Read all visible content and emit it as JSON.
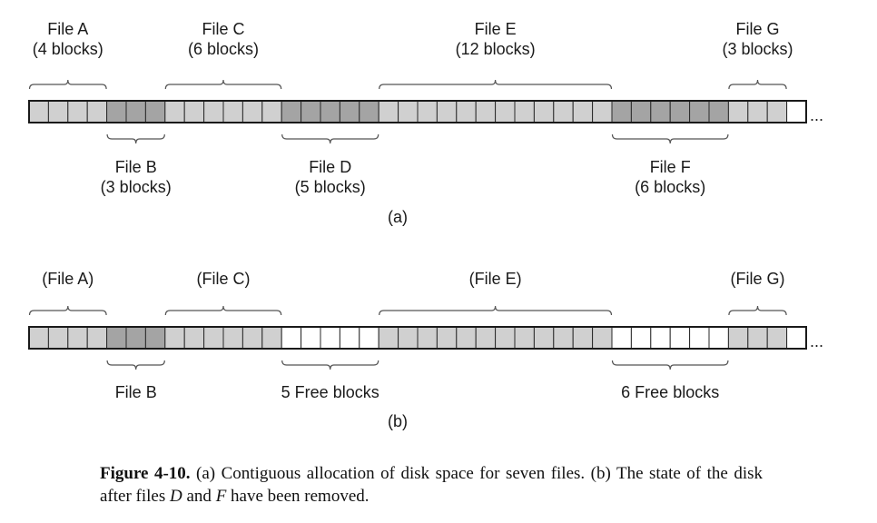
{
  "colors": {
    "light_block": "#d0d0d0",
    "dark_block": "#a4a4a4",
    "free_block": "#ffffff"
  },
  "total_blocks": 40,
  "panel_a": {
    "sublabel": "(a)",
    "ellipsis": "...",
    "segments": [
      {
        "file": "File A",
        "size_text": "(4 blocks)",
        "blocks": 4,
        "shade": "light",
        "label_side": "top"
      },
      {
        "file": "File B",
        "size_text": "(3 blocks)",
        "blocks": 3,
        "shade": "dark",
        "label_side": "bottom"
      },
      {
        "file": "File C",
        "size_text": "(6 blocks)",
        "blocks": 6,
        "shade": "light",
        "label_side": "top"
      },
      {
        "file": "File D",
        "size_text": "(5 blocks)",
        "blocks": 5,
        "shade": "dark",
        "label_side": "bottom"
      },
      {
        "file": "File E",
        "size_text": "(12 blocks)",
        "blocks": 12,
        "shade": "light",
        "label_side": "top"
      },
      {
        "file": "File F",
        "size_text": "(6 blocks)",
        "blocks": 6,
        "shade": "dark",
        "label_side": "bottom"
      },
      {
        "file": "File G",
        "size_text": "(3 blocks)",
        "blocks": 3,
        "shade": "light",
        "label_side": "top"
      },
      {
        "file": "",
        "size_text": "",
        "blocks": 1,
        "shade": "free",
        "label_side": "none"
      }
    ]
  },
  "panel_b": {
    "sublabel": "(b)",
    "ellipsis": "...",
    "segments": [
      {
        "file": "(File A)",
        "size_text": "",
        "blocks": 4,
        "shade": "light",
        "label_side": "top"
      },
      {
        "file": "File B",
        "size_text": "",
        "blocks": 3,
        "shade": "dark",
        "label_side": "bottom"
      },
      {
        "file": "(File C)",
        "size_text": "",
        "blocks": 6,
        "shade": "light",
        "label_side": "top"
      },
      {
        "file": "5 Free blocks",
        "size_text": "",
        "blocks": 5,
        "shade": "free",
        "label_side": "bottom"
      },
      {
        "file": "(File E)",
        "size_text": "",
        "blocks": 12,
        "shade": "light",
        "label_side": "top"
      },
      {
        "file": "6 Free blocks",
        "size_text": "",
        "blocks": 6,
        "shade": "free",
        "label_side": "bottom"
      },
      {
        "file": "(File G)",
        "size_text": "",
        "blocks": 3,
        "shade": "light",
        "label_side": "top"
      },
      {
        "file": "",
        "size_text": "",
        "blocks": 1,
        "shade": "free",
        "label_side": "none"
      }
    ]
  },
  "caption": {
    "figure_label": "Figure 4-10.",
    "text_1": " (a) Contiguous allocation of disk space for seven files. (b) The state of the disk after files ",
    "file_d": "D",
    "text_2": " and ",
    "file_f": "F",
    "text_3": " have been removed."
  }
}
